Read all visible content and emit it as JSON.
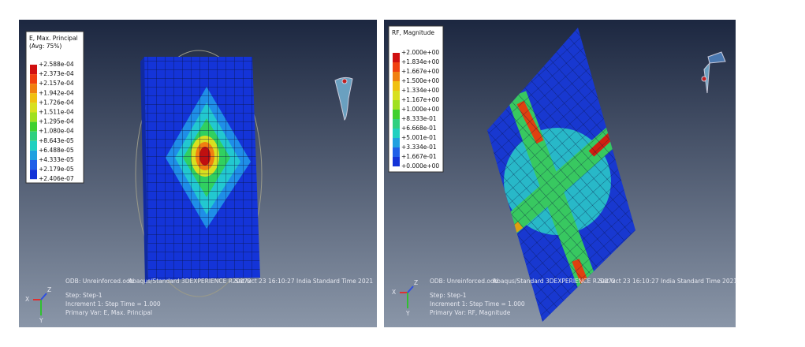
{
  "panels": [
    {
      "legend": {
        "title": "E, Max. Principal",
        "subtitle": "(Avg: 75%)",
        "labels": [
          "+2.588e-04",
          "+2.373e-04",
          "+2.157e-04",
          "+1.942e-04",
          "+1.726e-04",
          "+1.511e-04",
          "+1.295e-04",
          "+1.080e-04",
          "+8.643e-05",
          "+6.488e-05",
          "+4.333e-05",
          "+2.179e-05",
          "+2.406e-07"
        ]
      },
      "footer": {
        "odb": "ODB: Unreinforced.odb",
        "software": "Abaqus/Standard 3DEXPERIENCE R2017x",
        "date": "Sat Oct 23 16:10:27 India Standard Time 2021",
        "step": "Step: Step-1",
        "increment": "Increment     1: Step Time =    1.000",
        "primary_var": "Primary Var: E, Max. Principal"
      },
      "triad": [
        "X",
        "Y",
        "Z"
      ]
    },
    {
      "legend": {
        "title": "RF, Magnitude",
        "labels": [
          "+2.000e+00",
          "+1.834e+00",
          "+1.667e+00",
          "+1.500e+00",
          "+1.334e+00",
          "+1.167e+00",
          "+1.000e+00",
          "+8.333e-01",
          "+6.668e-01",
          "+5.001e-01",
          "+3.334e-01",
          "+1.667e-01",
          "+0.000e+00"
        ]
      },
      "footer": {
        "odb": "ODB: Unreinforced.odb",
        "software": "Abaqus/Standard 3DEXPERIENCE R2017x",
        "date": "Sat Oct 23 16:10:27 India Standard Time 2021",
        "step": "Step: Step-1",
        "increment": "Increment     1: Step Time =    1.000",
        "primary_var": "Primary Var: RF, Magnitude"
      },
      "triad": [
        "X",
        "Y",
        "Z"
      ]
    }
  ]
}
